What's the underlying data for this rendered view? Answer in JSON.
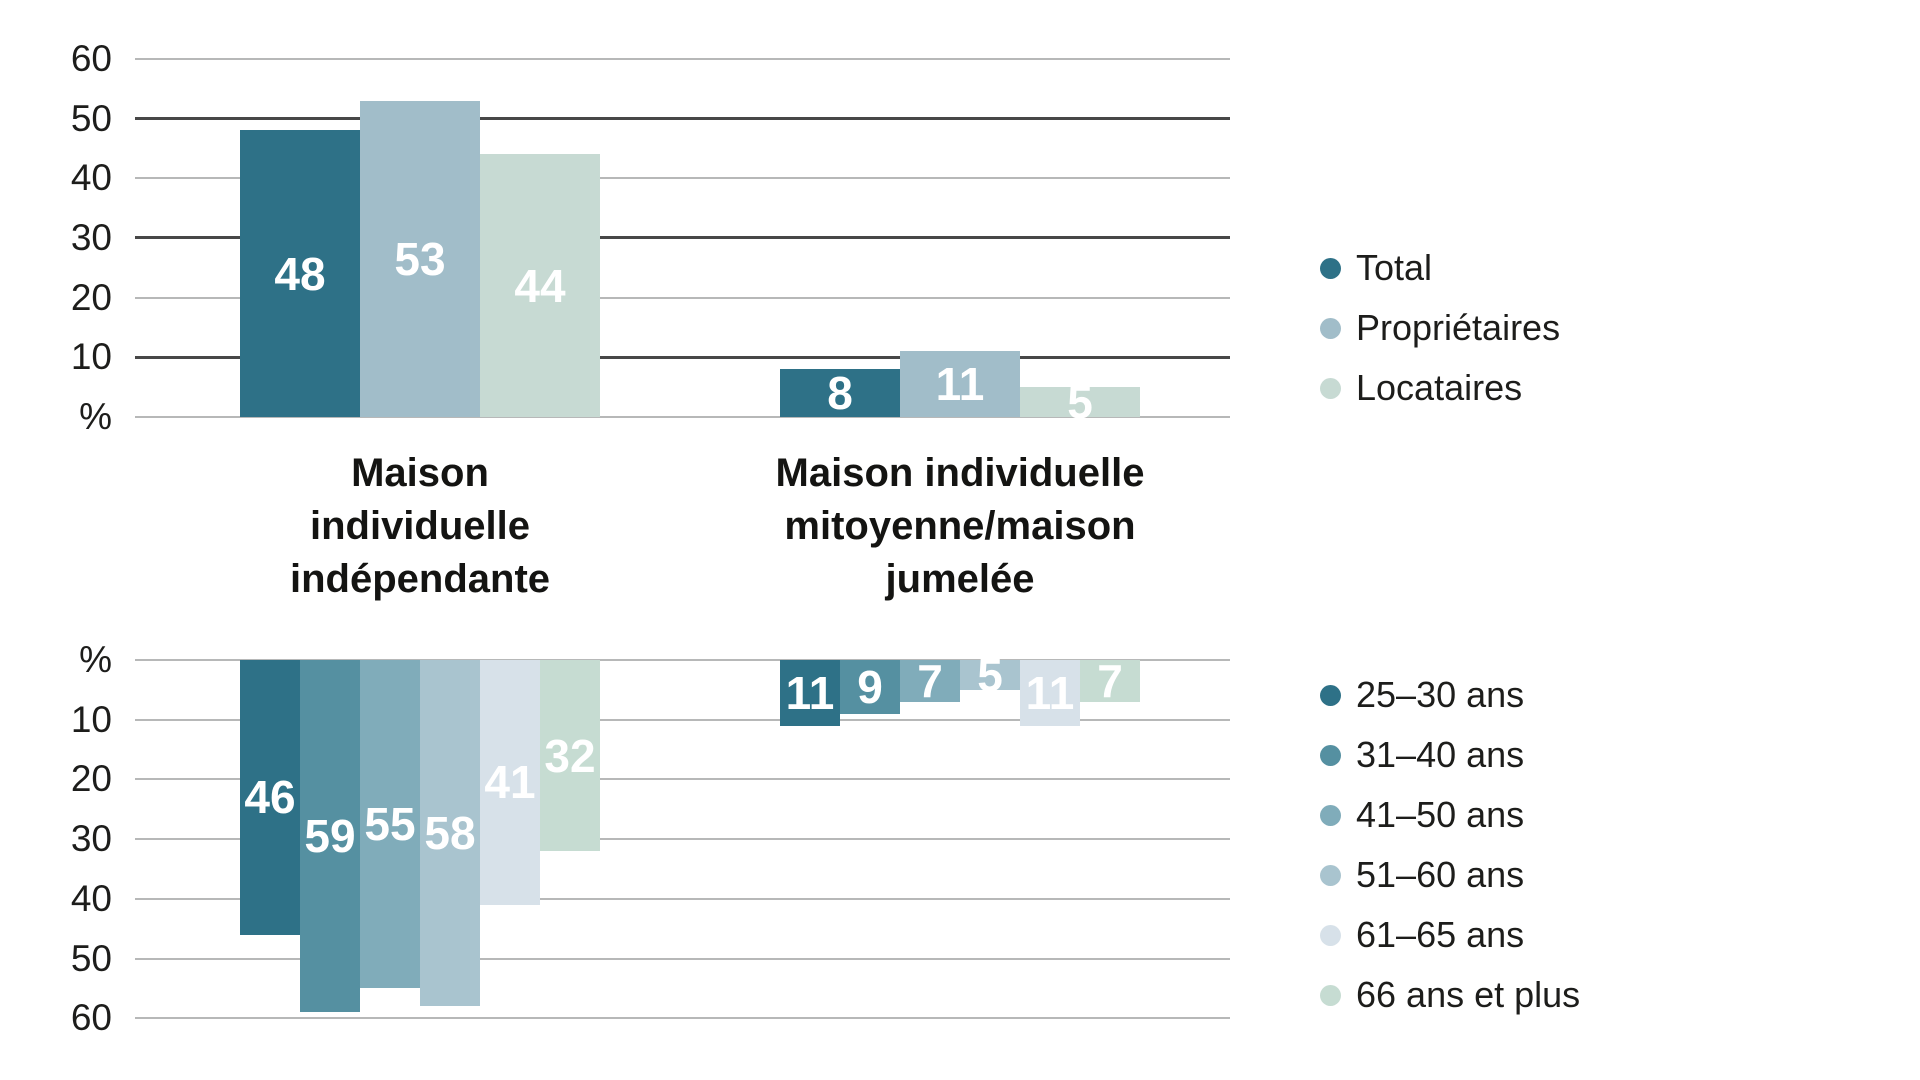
{
  "chart_data": [
    {
      "type": "bar",
      "orientation": "up",
      "unit": "%",
      "ylim": [
        0,
        60
      ],
      "grid": true,
      "tick_values": [
        0,
        10,
        20,
        30,
        40,
        50,
        60
      ],
      "tick_labels": [
        "%",
        "10",
        "20",
        "30",
        "40",
        "50",
        "60"
      ],
      "categories": [
        "Maison individuelle indépendante",
        "Maison individuelle mitoyenne/maison jumelée"
      ],
      "legend_position": "right",
      "series": [
        {
          "name": "Total",
          "color": "#2e7187",
          "values": [
            48,
            8
          ]
        },
        {
          "name": "Propriétaires",
          "color": "#a1bdc9",
          "values": [
            53,
            11
          ]
        },
        {
          "name": "Locataires",
          "color": "#c7dad3",
          "values": [
            44,
            5
          ]
        }
      ]
    },
    {
      "type": "bar",
      "orientation": "down",
      "unit": "%",
      "ylim": [
        0,
        60
      ],
      "grid": true,
      "tick_values": [
        0,
        10,
        20,
        30,
        40,
        50,
        60
      ],
      "tick_labels": [
        "%",
        "10",
        "20",
        "30",
        "40",
        "50",
        "60"
      ],
      "categories": [
        "Maison individuelle indépendante",
        "Maison individuelle mitoyenne/maison jumelée"
      ],
      "legend_position": "right",
      "series": [
        {
          "name": "25–30 ans",
          "color": "#2e7187",
          "values": [
            46,
            11
          ]
        },
        {
          "name": "31–40 ans",
          "color": "#5590a1",
          "values": [
            59,
            9
          ]
        },
        {
          "name": "41–50 ans",
          "color": "#80acba",
          "values": [
            55,
            7
          ]
        },
        {
          "name": "51–60 ans",
          "color": "#a9c4cf",
          "values": [
            58,
            5
          ]
        },
        {
          "name": "61–65 ans",
          "color": "#d7e1e9",
          "values": [
            41,
            11
          ]
        },
        {
          "name": "66 ans et plus",
          "color": "#c6dcd2",
          "values": [
            32,
            7
          ]
        }
      ]
    }
  ],
  "category_labels": [
    {
      "lines": [
        "Maison",
        "individuelle",
        "indépendante"
      ]
    },
    {
      "lines": [
        "Maison individuelle",
        "mitoyenne/maison",
        "jumelée"
      ]
    }
  ],
  "colors": {
    "grid_light": "#b7b8b8",
    "grid_dark": "#474747",
    "bar_label": "#ffffff",
    "text": "#1d1d1b",
    "background": "#ffffff"
  }
}
